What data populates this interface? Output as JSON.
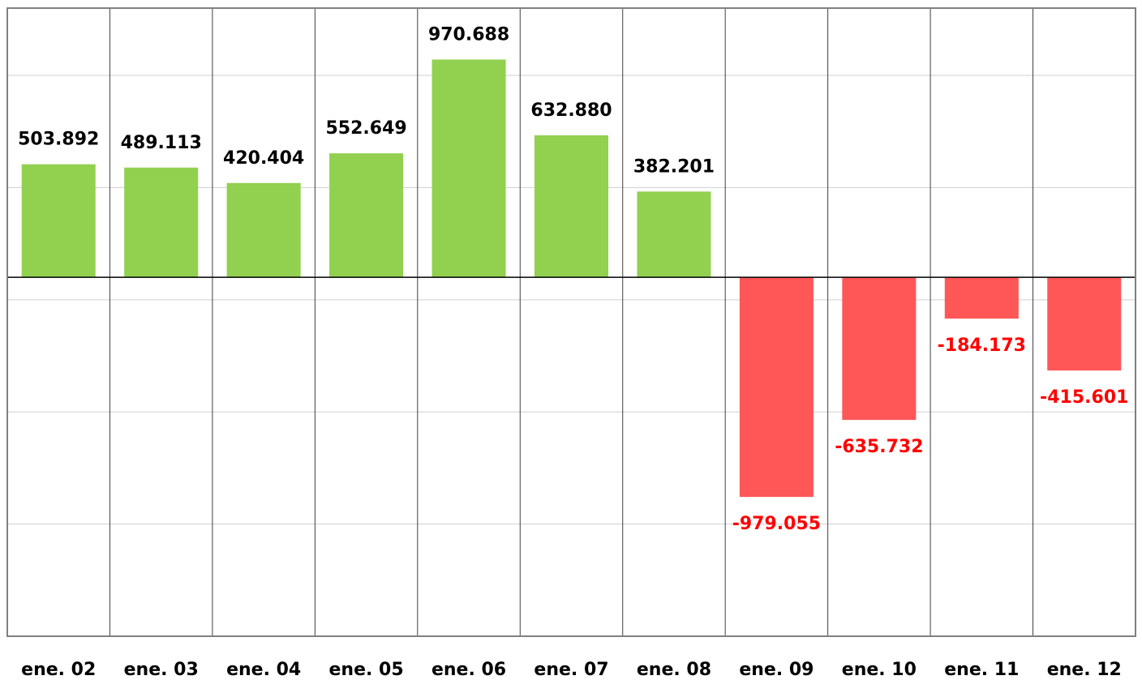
{
  "chart_data": {
    "type": "bar",
    "categories": [
      "ene. 02",
      "ene. 03",
      "ene. 04",
      "ene. 05",
      "ene. 06",
      "ene. 07",
      "ene. 08",
      "ene. 09",
      "ene. 10",
      "ene. 11",
      "ene. 12"
    ],
    "values": [
      503892,
      489113,
      420404,
      552649,
      970688,
      632880,
      382201,
      -979055,
      -635732,
      -184173,
      -415601
    ],
    "value_labels": [
      "503.892",
      "489.113",
      "420.404",
      "552.649",
      "970.688",
      "632.880",
      "382.201",
      "-979.055",
      "-635.732",
      "-184.173",
      "-415.601"
    ],
    "color_positive": "#92d050",
    "color_negative": "#ff5757",
    "label_color_positive": "#000000",
    "label_color_negative": "#ff0000",
    "ylim": [
      -1600000,
      1200000
    ],
    "yticks": [
      -1600000,
      -1100000,
      -600000,
      -100000,
      400000,
      900000
    ],
    "grid": true
  }
}
